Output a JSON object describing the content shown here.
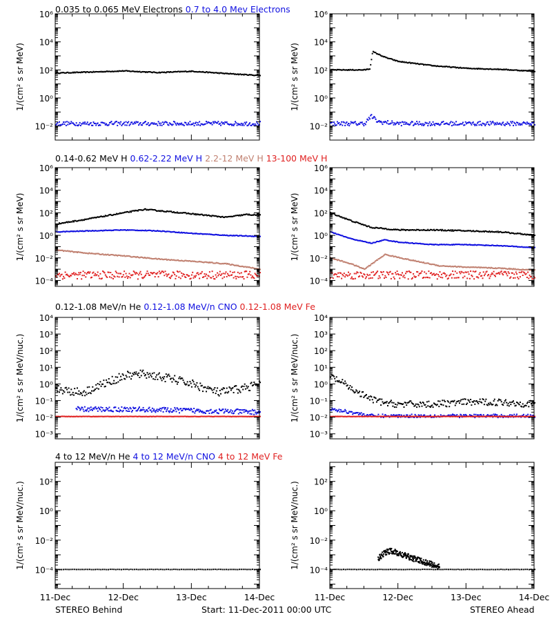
{
  "colors": {
    "black": "#000000",
    "blue": "#1010e0",
    "tan": "#c08070",
    "red": "#e02020"
  },
  "rows": [
    {
      "titles": [
        {
          "text": "0.035 to 0.065 MeV Electrons",
          "color": "black"
        },
        {
          "text": "0.7 to 4.0 Mev Electrons",
          "color": "blue"
        }
      ],
      "ylabel": "1/(cm² s sr MeV)"
    },
    {
      "titles": [
        {
          "text": "0.14-0.62 MeV H",
          "color": "black"
        },
        {
          "text": "0.62-2.22 MeV H",
          "color": "blue"
        },
        {
          "text": "2.2-12 MeV H",
          "color": "tan"
        },
        {
          "text": "13-100 MeV H",
          "color": "red"
        }
      ],
      "ylabel": "1/(cm² s sr MeV)"
    },
    {
      "titles": [
        {
          "text": "0.12-1.08 MeV/n He",
          "color": "black"
        },
        {
          "text": "0.12-1.08 MeV/n CNO",
          "color": "blue"
        },
        {
          "text": "0.12-1.08 MeV Fe",
          "color": "red"
        }
      ],
      "ylabel": "1/(cm² s sr MeV/nuc.)"
    },
    {
      "titles": [
        {
          "text": "4 to 12 MeV/n He",
          "color": "black"
        },
        {
          "text": "4 to 12 MeV/n CNO",
          "color": "blue"
        },
        {
          "text": "4 to 12 MeV Fe",
          "color": "red"
        }
      ],
      "ylabel": "1/(cm² s sr MeV/nuc.)"
    }
  ],
  "x_ticks": [
    "11-Dec",
    "12-Dec",
    "13-Dec",
    "14-Dec"
  ],
  "footer": {
    "left": "STEREO Behind",
    "center": "Start: 11-Dec-2011 00:00 UTC",
    "right": "STEREO Ahead"
  },
  "chart_data": [
    {
      "type": "scatter",
      "row": 0,
      "col": 0,
      "yscale": "log",
      "ylim": [
        0.001,
        1000000
      ],
      "ytick_exponents": [
        -2,
        0,
        2,
        4,
        6
      ],
      "xlim": [
        0,
        3
      ],
      "series": [
        {
          "color": "black",
          "noise": 0.03,
          "x": [
            0,
            0.5,
            1,
            1.5,
            2,
            2.5,
            3
          ],
          "y": [
            60,
            70,
            85,
            65,
            80,
            55,
            40
          ]
        },
        {
          "color": "blue",
          "noise": 0.15,
          "x": [
            0,
            1,
            2,
            3
          ],
          "y": [
            0.015,
            0.015,
            0.015,
            0.015
          ]
        }
      ]
    },
    {
      "type": "scatter",
      "row": 0,
      "col": 1,
      "yscale": "log",
      "ylim": [
        0.001,
        1000000
      ],
      "ytick_exponents": [
        -2,
        0,
        2,
        4,
        6
      ],
      "xlim": [
        0,
        3
      ],
      "series": [
        {
          "color": "black",
          "noise": 0.03,
          "x": [
            0,
            0.5,
            0.58,
            0.62,
            0.8,
            1,
            1.5,
            2,
            2.5,
            3
          ],
          "y": [
            100,
            100,
            120,
            2000,
            800,
            400,
            200,
            130,
            110,
            80
          ]
        },
        {
          "color": "blue",
          "noise": 0.15,
          "x": [
            0,
            0.5,
            0.6,
            0.7,
            1,
            2,
            3
          ],
          "y": [
            0.015,
            0.015,
            0.05,
            0.02,
            0.015,
            0.015,
            0.015
          ]
        }
      ]
    },
    {
      "type": "scatter",
      "row": 1,
      "col": 0,
      "yscale": "log",
      "ylim": [
        3e-05,
        1000000
      ],
      "ytick_exponents": [
        -4,
        -2,
        0,
        2,
        4,
        6
      ],
      "xlim": [
        0,
        3
      ],
      "series": [
        {
          "color": "black",
          "noise": 0.05,
          "x": [
            0,
            0.5,
            1,
            1.3,
            1.7,
            2,
            2.5,
            2.8,
            3
          ],
          "y": [
            10,
            30,
            100,
            200,
            120,
            80,
            40,
            70,
            60
          ]
        },
        {
          "color": "blue",
          "noise": 0.03,
          "x": [
            0,
            0.5,
            1,
            1.5,
            2,
            2.5,
            3
          ],
          "y": [
            2,
            2.5,
            3,
            2.5,
            1.5,
            1,
            0.8
          ]
        },
        {
          "color": "tan",
          "noise": 0.04,
          "x": [
            0,
            0.5,
            1,
            1.5,
            2,
            2.5,
            3
          ],
          "y": [
            0.05,
            0.025,
            0.015,
            0.008,
            0.005,
            0.003,
            0.001
          ]
        },
        {
          "color": "red",
          "noise": 0.35,
          "x": [
            0,
            1,
            2,
            3
          ],
          "y": [
            0.0003,
            0.0003,
            0.0003,
            0.0003
          ]
        }
      ]
    },
    {
      "type": "scatter",
      "row": 1,
      "col": 1,
      "yscale": "log",
      "ylim": [
        3e-05,
        1000000
      ],
      "ytick_exponents": [
        -4,
        -2,
        0,
        2,
        4,
        6
      ],
      "xlim": [
        0,
        3
      ],
      "series": [
        {
          "color": "black",
          "noise": 0.05,
          "x": [
            0,
            0.3,
            0.6,
            1,
            1.5,
            2,
            2.5,
            3
          ],
          "y": [
            100,
            20,
            5,
            3,
            3,
            2.5,
            2,
            1
          ]
        },
        {
          "color": "blue",
          "noise": 0.03,
          "x": [
            0,
            0.3,
            0.6,
            0.8,
            1,
            1.5,
            2,
            2.5,
            3
          ],
          "y": [
            2,
            0.5,
            0.2,
            0.4,
            0.25,
            0.15,
            0.15,
            0.12,
            0.08
          ]
        },
        {
          "color": "tan",
          "noise": 0.04,
          "x": [
            0,
            0.3,
            0.5,
            0.8,
            1.2,
            1.6,
            2,
            2.5,
            3
          ],
          "y": [
            0.01,
            0.003,
            0.001,
            0.02,
            0.006,
            0.002,
            0.0015,
            0.0012,
            0.0008
          ]
        },
        {
          "color": "red",
          "noise": 0.35,
          "x": [
            0,
            1,
            2,
            3
          ],
          "y": [
            0.0003,
            0.0003,
            0.0003,
            0.0003
          ]
        }
      ]
    },
    {
      "type": "scatter",
      "row": 2,
      "col": 0,
      "yscale": "log",
      "ylim": [
        0.0005,
        10000
      ],
      "ytick_exponents": [
        -3,
        -2,
        -1,
        0,
        1,
        2,
        3,
        4
      ],
      "xlim": [
        0,
        3
      ],
      "series": [
        {
          "color": "black",
          "noise": 0.25,
          "x": [
            0,
            0.4,
            0.7,
            1,
            1.3,
            1.7,
            2,
            2.4,
            2.7,
            3
          ],
          "y": [
            0.5,
            0.3,
            1,
            3,
            4,
            2,
            1,
            0.3,
            0.5,
            1
          ]
        },
        {
          "color": "blue",
          "noise": 0.15,
          "x": [
            0.3,
            1,
            2,
            3
          ],
          "y": [
            0.03,
            0.03,
            0.025,
            0.02
          ]
        },
        {
          "color": "red",
          "noise": 0.01,
          "x": [
            0,
            1,
            2,
            3
          ],
          "y": [
            0.011,
            0.011,
            0.011,
            0.011
          ]
        }
      ]
    },
    {
      "type": "scatter",
      "row": 2,
      "col": 1,
      "yscale": "log",
      "ylim": [
        0.0005,
        10000
      ],
      "ytick_exponents": [
        -3,
        -2,
        -1,
        0,
        1,
        2,
        3,
        4
      ],
      "xlim": [
        0,
        3
      ],
      "series": [
        {
          "color": "black",
          "noise": 0.2,
          "x": [
            0,
            0.2,
            0.4,
            0.6,
            0.8,
            1,
            1.5,
            2,
            2.5,
            3
          ],
          "y": [
            3,
            1,
            0.3,
            0.12,
            0.07,
            0.06,
            0.06,
            0.08,
            0.08,
            0.06
          ]
        },
        {
          "color": "blue",
          "noise": 0.1,
          "x": [
            0,
            0.3,
            0.6,
            1,
            2,
            3
          ],
          "y": [
            0.03,
            0.02,
            0.012,
            0.012,
            0.012,
            0.012
          ]
        },
        {
          "color": "red",
          "noise": 0.01,
          "x": [
            0,
            1,
            2,
            3
          ],
          "y": [
            0.011,
            0.011,
            0.011,
            0.011
          ]
        }
      ]
    },
    {
      "type": "scatter",
      "row": 3,
      "col": 0,
      "yscale": "log",
      "ylim": [
        5e-06,
        2000
      ],
      "ytick_exponents": [
        -4,
        -2,
        0,
        2
      ],
      "xlim": [
        0,
        3
      ],
      "series": [
        {
          "color": "black",
          "noise": 0.01,
          "sparse": true,
          "x": [
            0,
            1,
            2,
            3
          ],
          "y": [
            0.0001,
            0.0001,
            0.0001,
            0.0001
          ]
        }
      ]
    },
    {
      "type": "scatter",
      "row": 3,
      "col": 1,
      "yscale": "log",
      "ylim": [
        5e-06,
        2000
      ],
      "ytick_exponents": [
        -4,
        -2,
        0,
        2
      ],
      "xlim": [
        0,
        3
      ],
      "series": [
        {
          "color": "black",
          "noise": 0.01,
          "sparse": true,
          "x": [
            0,
            1,
            2,
            3
          ],
          "y": [
            0.0001,
            0.0001,
            0.0001,
            0.0001
          ]
        },
        {
          "color": "black",
          "noise": 0.2,
          "x": [
            0.7,
            0.8,
            0.9,
            1,
            1.2,
            1.4,
            1.6
          ],
          "y": [
            0.0005,
            0.0015,
            0.0018,
            0.0012,
            0.0006,
            0.0003,
            0.00015
          ]
        }
      ]
    }
  ]
}
